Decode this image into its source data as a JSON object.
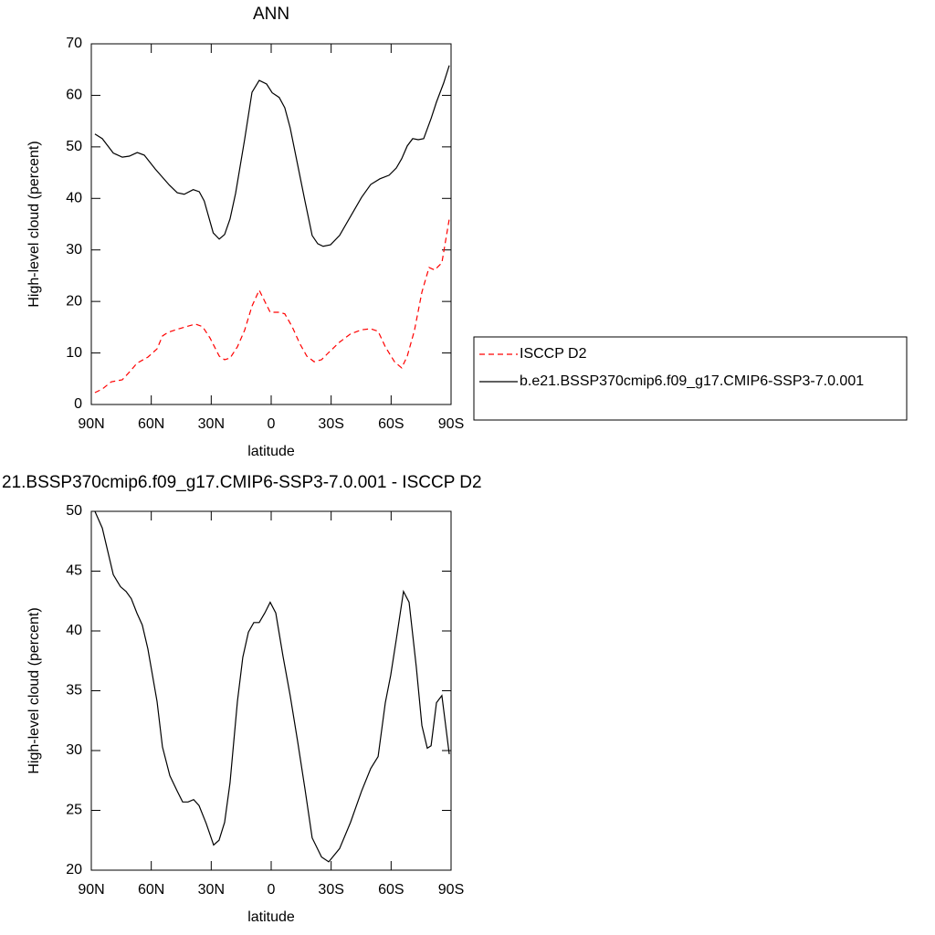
{
  "chart_data": [
    {
      "type": "line",
      "title": "ANN",
      "xlabel": "latitude",
      "ylabel": "High-level cloud (percent)",
      "xlim": [
        90,
        -90
      ],
      "xticks": [
        {
          "value": 90,
          "label": "90N"
        },
        {
          "value": 60,
          "label": "60N"
        },
        {
          "value": 30,
          "label": "30N"
        },
        0,
        {
          "value": -30,
          "label": "30S"
        },
        {
          "value": -60,
          "label": "60S"
        },
        {
          "value": -90,
          "label": "90S"
        }
      ],
      "ylim": [
        0,
        70
      ],
      "yticks": [
        0,
        10,
        20,
        30,
        40,
        50,
        60,
        70
      ],
      "series": [
        {
          "name": "ISCCP D2",
          "color": "#ff0000",
          "dashed": true,
          "x": [
            88.2,
            84.5,
            80,
            74.5,
            70,
            67.2,
            61.7,
            57.1,
            54.4,
            51.6,
            46.1,
            41.6,
            37.9,
            34.3,
            30.6,
            26,
            23.3,
            20.6,
            16.9,
            13.3,
            9.6,
            6,
            3.2,
            0.5,
            -4,
            -6.8,
            -10.5,
            -14.2,
            -17.8,
            -21.5,
            -25.2,
            -28.8,
            -34.2,
            -39.7,
            -45.2,
            -49.8,
            -53.5,
            -57.1,
            -61.7,
            -65.3,
            -68.1,
            -71.7,
            -75.4,
            -79,
            -81.8,
            -85.4,
            -89.1
          ],
          "values": [
            2.3,
            3.0,
            4.4,
            4.8,
            6.7,
            8.0,
            9.2,
            10.8,
            13.3,
            14.0,
            14.7,
            15.2,
            15.6,
            15.1,
            12.9,
            9.4,
            8.7,
            9.0,
            11.2,
            14.4,
            19.1,
            22.2,
            20.0,
            17.9,
            17.9,
            17.6,
            15.1,
            11.9,
            9.4,
            8.3,
            8.7,
            10.1,
            12.1,
            13.7,
            14.5,
            14.7,
            14.2,
            11.2,
            8.3,
            7.1,
            9.4,
            14.4,
            21.8,
            26.6,
            26.1,
            27.5,
            36.0
          ]
        },
        {
          "name": "b.e21.BSSP370cmip6.f09_g17.CMIP6-SSP3-7.0.001",
          "color": "#000000",
          "dashed": false,
          "x": [
            88.2,
            84.5,
            79,
            74.5,
            71,
            67,
            63.5,
            58,
            51,
            47,
            43.5,
            39,
            36,
            33.5,
            29,
            26,
            23.3,
            20.6,
            17.8,
            13.3,
            9.6,
            6,
            2.3,
            -0.5,
            -4,
            -6.8,
            -9.5,
            -13.2,
            -16.9,
            -20.5,
            -23.3,
            -26,
            -29.7,
            -34.2,
            -39.7,
            -45.2,
            -49.8,
            -54.4,
            -59,
            -62.6,
            -65.3,
            -68.1,
            -70.8,
            -73.6,
            -76.3,
            -80,
            -82.7,
            -86.3,
            -89.1
          ],
          "values": [
            52.5,
            51.6,
            48.8,
            48.0,
            48.2,
            48.9,
            48.4,
            45.7,
            42.6,
            41.1,
            40.8,
            41.7,
            41.3,
            39.5,
            33.3,
            32.1,
            33.0,
            36.0,
            41.0,
            51.4,
            60.6,
            62.9,
            62.2,
            60.5,
            59.6,
            57.6,
            53.7,
            46.6,
            39.5,
            32.8,
            31.2,
            30.7,
            31.0,
            32.8,
            36.5,
            40.2,
            42.7,
            43.8,
            44.5,
            45.9,
            47.7,
            50.2,
            51.6,
            51.4,
            51.6,
            55.5,
            58.7,
            62.4,
            65.8
          ]
        }
      ]
    },
    {
      "type": "line",
      "title": "21.BSSP370cmip6.f09_g17.CMIP6-SSP3-7.0.001 - ISCCP D2",
      "xlabel": "latitude",
      "ylabel": "High-level cloud (percent)",
      "xlim": [
        90,
        -90
      ],
      "xticks": [
        {
          "value": 90,
          "label": "90N"
        },
        {
          "value": 60,
          "label": "60N"
        },
        {
          "value": 30,
          "label": "30N"
        },
        0,
        {
          "value": -30,
          "label": "30S"
        },
        {
          "value": -60,
          "label": "60S"
        },
        {
          "value": -90,
          "label": "90S"
        }
      ],
      "ylim": [
        20,
        50
      ],
      "yticks": [
        20,
        25,
        30,
        35,
        40,
        45,
        50
      ],
      "series": [
        {
          "color": "#000000",
          "dashed": false,
          "x": [
            88.2,
            84.5,
            79,
            75.4,
            72.6,
            70,
            67.2,
            64.5,
            61.7,
            57.1,
            54.4,
            50.7,
            47,
            44.3,
            41.6,
            38.8,
            36.1,
            32.5,
            28.8,
            26.1,
            23.3,
            20.6,
            16.9,
            14.2,
            11.4,
            8.7,
            6,
            3.2,
            0.5,
            -2.3,
            -5.9,
            -9.5,
            -13.2,
            -16.9,
            -20.5,
            -25.2,
            -28.8,
            -34.2,
            -39.7,
            -45.2,
            -49.8,
            -53.5,
            -57.1,
            -59.8,
            -62.6,
            -66.2,
            -69,
            -72.6,
            -75.4,
            -78.1,
            -80,
            -82.7,
            -85.4,
            -89.1
          ],
          "values": [
            50.0,
            48.6,
            44.7,
            43.7,
            43.3,
            42.7,
            41.5,
            40.5,
            38.5,
            34.1,
            30.3,
            27.9,
            26.6,
            25.7,
            25.7,
            25.9,
            25.4,
            23.9,
            22.1,
            22.5,
            24.0,
            27.3,
            34.1,
            37.8,
            39.9,
            40.7,
            40.7,
            41.5,
            42.4,
            41.5,
            37.9,
            34.6,
            30.8,
            26.8,
            22.7,
            21.1,
            20.7,
            21.8,
            24.0,
            26.6,
            28.5,
            29.5,
            34.0,
            36.3,
            39.3,
            43.3,
            42.4,
            37.0,
            32.1,
            30.2,
            30.4,
            34.0,
            34.6,
            29.7
          ]
        }
      ]
    }
  ]
}
